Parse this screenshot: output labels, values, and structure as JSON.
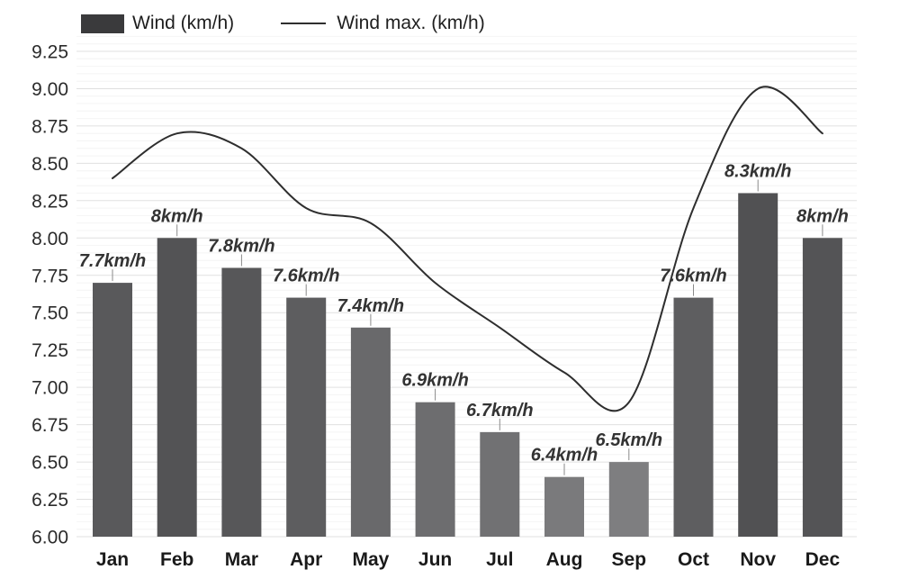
{
  "legend": {
    "bar_series_label": "Wind (km/h)",
    "line_series_label": "Wind max. (km/h)"
  },
  "chart_data": {
    "type": "bar+line",
    "categories": [
      "Jan",
      "Feb",
      "Mar",
      "Apr",
      "May",
      "Jun",
      "Jul",
      "Aug",
      "Sep",
      "Oct",
      "Nov",
      "Dec"
    ],
    "series": [
      {
        "name": "Wind (km/h)",
        "type": "bar",
        "values": [
          7.7,
          8,
          7.8,
          7.6,
          7.4,
          6.9,
          6.7,
          6.4,
          6.5,
          7.6,
          8.3,
          8
        ],
        "data_labels": [
          "7.7km/h",
          "8km/h",
          "7.8km/h",
          "7.6km/h",
          "7.4km/h",
          "6.9km/h",
          "6.7km/h",
          "6.4km/h",
          "6.5km/h",
          "7.6km/h",
          "8.3km/h",
          "8km/h"
        ],
        "colors": [
          "#59595b",
          "#535355",
          "#575759",
          "#5d5d5f",
          "#69696b",
          "#6d6d6f",
          "#717173",
          "#7a7a7c",
          "#7e7e80",
          "#5e5e60",
          "#515153",
          "#545456"
        ]
      },
      {
        "name": "Wind max. (km/h)",
        "type": "spline",
        "values": [
          8.4,
          8.7,
          8.6,
          8.2,
          8.1,
          7.7,
          7.4,
          7.1,
          6.9,
          8.2,
          9.0,
          8.7
        ],
        "color": "#2e2e2e"
      }
    ],
    "ylim": [
      6.0,
      9.25
    ],
    "ytick_step": 0.25,
    "ytick_labels": [
      "6.00",
      "6.25",
      "6.50",
      "6.75",
      "7.00",
      "7.25",
      "7.50",
      "7.75",
      "8.00",
      "8.25",
      "8.50",
      "8.75",
      "9.00",
      "9.25"
    ],
    "minor_tick_step": 0.05,
    "grid": true,
    "legend_position": "top-left",
    "xlabel": "",
    "ylabel": ""
  },
  "colors": {
    "background": "#ffffff",
    "grid_major": "#e0e0e0",
    "grid_minor": "#f4f4f4",
    "axis_tick_label": "#2b2b2b",
    "month_label": "#1a1a1a",
    "data_label": "#333333",
    "tick_connector": "#8a8a8a",
    "legend_swatch": "#3a3a3c",
    "line": "#2e2e2e"
  }
}
